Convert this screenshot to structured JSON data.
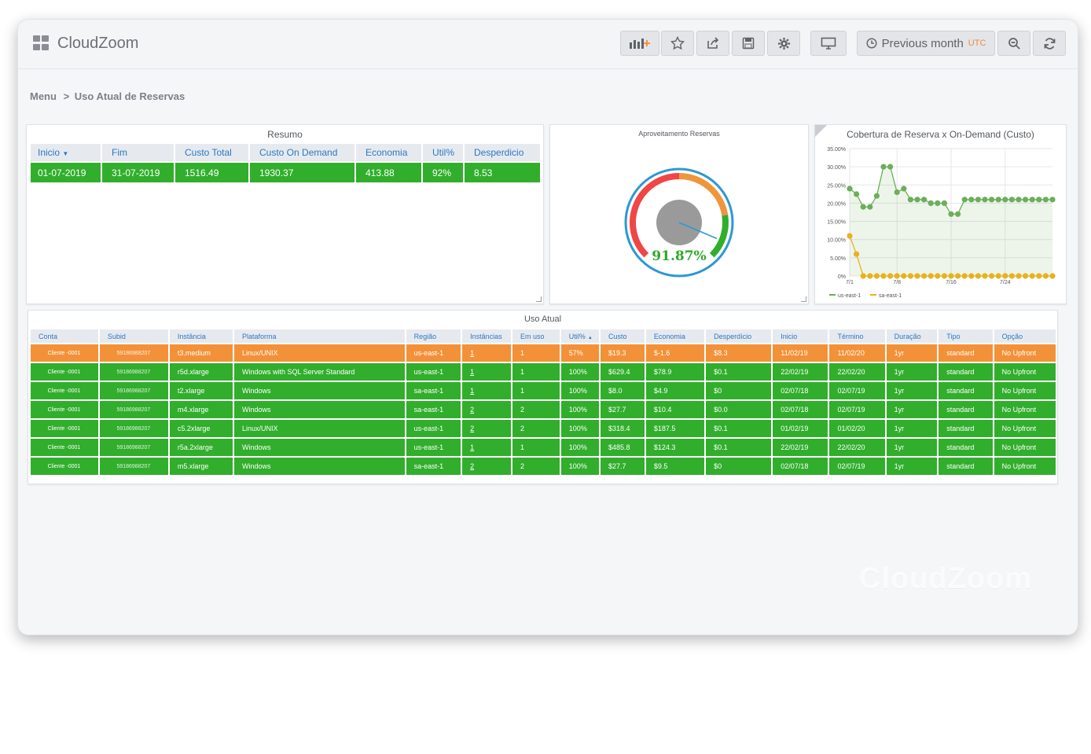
{
  "app": {
    "title": "CloudZoom",
    "watermark": "CloudZoom"
  },
  "toolbar": {
    "time_range": "Previous month",
    "timezone": "UTC"
  },
  "breadcrumb": {
    "root": "Menu",
    "separator": ">",
    "current": "Uso Atual de Reservas"
  },
  "resumo": {
    "title": "Resumo",
    "headers": [
      "Inicio",
      "Fim",
      "Custo Total",
      "Custo On Demand",
      "Economia",
      "Util%",
      "Desperdicio"
    ],
    "row": [
      "01-07-2019",
      "31-07-2019",
      "1516.49",
      "1930.37",
      "413.88",
      "92%",
      "8.53"
    ]
  },
  "gauge": {
    "title": "Aproveitamento Reservas",
    "value": 91.87,
    "value_label": "91.87%",
    "colors": {
      "low": "#f04646",
      "mid": "#f0953c",
      "high": "#31ae2c",
      "ring": "#2c98d4",
      "hub": "#9a9a9a",
      "needle": "#2c98d4"
    }
  },
  "chart_data": {
    "type": "line",
    "title": "Cobertura de Reserva x On-Demand (Custo)",
    "xlabel": "",
    "ylabel": "",
    "y_tick_labels": [
      "35.00%",
      "30.00%",
      "25.00%",
      "20.00%",
      "15.00%",
      "10.00%",
      "5.00%",
      "0%"
    ],
    "x_tick_labels": [
      "7/1",
      "7/8",
      "7/16",
      "7/24"
    ],
    "ylim": [
      0,
      35
    ],
    "grid": true,
    "legend_position": "bottom-left",
    "series": [
      {
        "name": "us-east-1",
        "color": "#6cae5a",
        "area": true,
        "values": [
          24,
          22.5,
          19,
          19,
          22,
          30,
          30,
          23,
          24,
          21,
          21,
          21,
          20,
          20,
          20,
          17,
          17,
          21,
          21,
          21,
          21,
          21,
          21,
          21,
          21,
          21,
          21,
          21,
          21,
          21,
          21
        ]
      },
      {
        "name": "sa-east-1",
        "color": "#e8b21e",
        "area": false,
        "values": [
          11,
          6,
          0,
          0,
          0,
          0,
          0,
          0,
          0,
          0,
          0,
          0,
          0,
          0,
          0,
          0,
          0,
          0,
          0,
          0,
          0,
          0,
          0,
          0,
          0,
          0,
          0,
          0,
          0,
          0,
          0
        ]
      }
    ]
  },
  "uso": {
    "title": "Uso Atual",
    "headers": [
      "Conta",
      "Subid",
      "Instância",
      "Plataforma",
      "Região",
      "Instâncias",
      "Em uso",
      "Util%",
      "Custo",
      "Economia",
      "Desperdício",
      "Inicio",
      "Término",
      "Duração",
      "Tipo",
      "Opção"
    ],
    "rows": [
      {
        "status": "orange",
        "cells": [
          "Cliente -0001",
          "59186988207",
          "t3.medium",
          "Linux/UNIX",
          "us-east-1",
          "1",
          "1",
          "57%",
          "$19.3",
          "$-1.6",
          "$8.3",
          "11/02/19",
          "11/02/20",
          "1yr",
          "standard",
          "No Upfront"
        ]
      },
      {
        "status": "green",
        "cells": [
          "Cliente -0001",
          "59186988207",
          "r5d.xlarge",
          "Windows with SQL Server Standard",
          "us-east-1",
          "1",
          "1",
          "100%",
          "$629.4",
          "$78.9",
          "$0.1",
          "22/02/19",
          "22/02/20",
          "1yr",
          "standard",
          "No Upfront"
        ]
      },
      {
        "status": "green",
        "cells": [
          "Cliente -0001",
          "59186988207",
          "t2.xlarge",
          "Windows",
          "sa-east-1",
          "1",
          "1",
          "100%",
          "$8.0",
          "$4.9",
          "$0",
          "02/07/18",
          "02/07/19",
          "1yr",
          "standard",
          "No Upfront"
        ]
      },
      {
        "status": "green",
        "cells": [
          "Cliente -0001",
          "59186988207",
          "m4.xlarge",
          "Windows",
          "sa-east-1",
          "2",
          "2",
          "100%",
          "$27.7",
          "$10.4",
          "$0.0",
          "02/07/18",
          "02/07/19",
          "1yr",
          "standard",
          "No Upfront"
        ]
      },
      {
        "status": "green",
        "cells": [
          "Cliente -0001",
          "59186988207",
          "c5.2xlarge",
          "Linux/UNIX",
          "us-east-1",
          "2",
          "2",
          "100%",
          "$318.4",
          "$187.5",
          "$0.1",
          "01/02/19",
          "01/02/20",
          "1yr",
          "standard",
          "No Upfront"
        ]
      },
      {
        "status": "green",
        "cells": [
          "Cliente -0001",
          "59186988207",
          "r5a.2xlarge",
          "Windows",
          "us-east-1",
          "1",
          "1",
          "100%",
          "$485.8",
          "$124.3",
          "$0.1",
          "22/02/19",
          "22/02/20",
          "1yr",
          "standard",
          "No Upfront"
        ]
      },
      {
        "status": "green",
        "cells": [
          "Cliente -0001",
          "59186988207",
          "m5.xlarge",
          "Windows",
          "sa-east-1",
          "2",
          "2",
          "100%",
          "$27.7",
          "$9.5",
          "$0",
          "02/07/18",
          "02/07/19",
          "1yr",
          "standard",
          "No Upfront"
        ]
      }
    ]
  },
  "icons": [
    "grid-logo-icon",
    "add-panel-icon",
    "star-icon",
    "share-icon",
    "save-icon",
    "gear-icon",
    "monitor-icon",
    "clock-icon",
    "zoom-out-icon",
    "refresh-icon",
    "sort-desc-icon",
    "sort-asc-icon",
    "info-icon",
    "resize-handle-icon"
  ]
}
